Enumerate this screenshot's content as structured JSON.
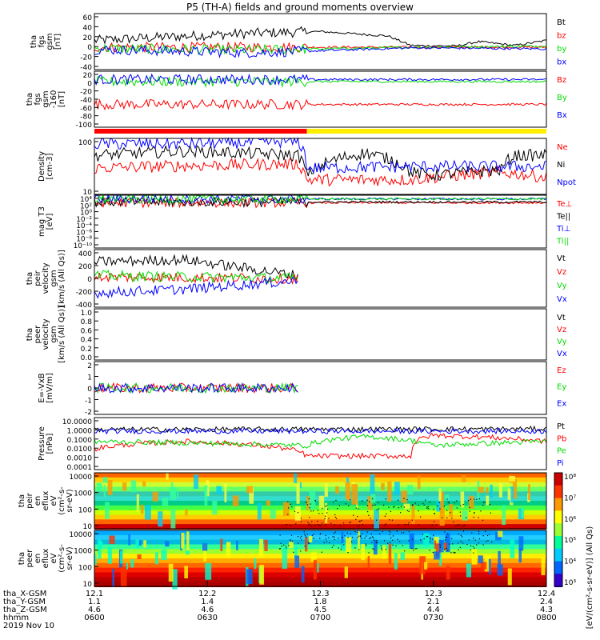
{
  "title": "P5 (TH-A) fields and ground moments overview",
  "colors": {
    "black": "#000000",
    "red": "#ff0000",
    "green": "#00dd00",
    "blue": "#0000ff",
    "yellow": "#ffee00"
  },
  "chart_data": [
    {
      "type": "line",
      "panel": "fgs",
      "ylabel_lines": [
        "tha",
        "fgs",
        "gsm",
        "[nT]"
      ],
      "yticks": [
        "60",
        "40",
        "20",
        "0",
        "-20",
        "-40"
      ],
      "ylim": [
        -40,
        60
      ],
      "series": [
        {
          "name": "Bt",
          "color": "#000000",
          "x": [
            0.0,
            0.15,
            0.35,
            0.5,
            0.65,
            0.7,
            0.71,
            0.8,
            0.85,
            0.93,
            1.0
          ],
          "values": [
            12,
            18,
            25,
            28,
            20,
            3,
            3,
            2,
            10,
            3,
            12
          ]
        },
        {
          "name": "bz",
          "color": "#ff0000",
          "x": [
            0.0,
            0.35,
            0.71,
            1.0
          ],
          "values": [
            0,
            0,
            0,
            0
          ]
        },
        {
          "name": "by",
          "color": "#00dd00",
          "x": [
            0.0,
            0.35,
            0.71,
            1.0
          ],
          "values": [
            -2,
            -5,
            0,
            2
          ]
        },
        {
          "name": "bx",
          "color": "#0000ff",
          "x": [
            0.0,
            0.35,
            0.71,
            1.0
          ],
          "values": [
            -4,
            -10,
            -1,
            -3
          ]
        }
      ]
    },
    {
      "type": "line",
      "panel": "fgs-gse",
      "ylabel_lines": [
        "tha",
        "fgs",
        "gsm",
        "-160",
        "[nT]"
      ],
      "yticks": [
        "20",
        "0",
        "-20",
        "-40",
        "-60",
        "-80",
        "-100"
      ],
      "ylim": [
        -110,
        25
      ],
      "series": [
        {
          "name": "Bz",
          "color": "#ff0000",
          "x": [
            0.0,
            1.0
          ],
          "values": [
            -55,
            -55
          ]
        },
        {
          "name": "By",
          "color": "#00dd00",
          "x": [
            0.0,
            1.0
          ],
          "values": [
            0,
            0
          ]
        },
        {
          "name": "Bx",
          "color": "#0000ff",
          "x": [
            0.0,
            1.0
          ],
          "values": [
            5,
            5
          ]
        }
      ]
    },
    {
      "type": "line",
      "panel": "density",
      "ylabel_lines": [
        "Density",
        "[cm-3]"
      ],
      "yticks": [
        "100",
        "10"
      ],
      "ylim": [
        1,
        200
      ],
      "log": true,
      "series": [
        {
          "name": "Ne",
          "color": "#ff0000",
          "x": [
            0.0,
            0.2,
            0.45,
            0.47,
            0.7,
            0.75,
            0.9,
            1.0
          ],
          "values": [
            12,
            15,
            18,
            4,
            4,
            5,
            8,
            5
          ]
        },
        {
          "name": "Ni",
          "color": "#000000",
          "x": [
            0.0,
            0.2,
            0.45,
            0.47,
            0.6,
            0.7,
            0.75,
            0.9,
            0.93,
            1.0
          ],
          "values": [
            40,
            60,
            40,
            5,
            50,
            8,
            6,
            10,
            40,
            40
          ]
        },
        {
          "name": "Npot",
          "color": "#0000ff",
          "x": [
            0.0,
            0.2,
            0.45,
            0.47,
            0.7,
            1.0
          ],
          "values": [
            120,
            120,
            150,
            12,
            14,
            14
          ]
        }
      ]
    },
    {
      "type": "line",
      "panel": "temperature",
      "ylabel_lines": [
        "mag T3",
        "[eV]"
      ],
      "yticks": [
        "10⁴",
        "10²",
        "10⁰",
        "10⁻²",
        "10⁻⁴",
        "10⁻⁶",
        "10⁻⁸",
        "10⁻¹⁰"
      ],
      "ylim": [
        -10,
        4
      ],
      "series": [
        {
          "name": "Te⊥",
          "color": "#ff0000",
          "x": [
            0.0,
            1.0
          ],
          "values": [
            2,
            2
          ]
        },
        {
          "name": "Te||",
          "color": "#000000",
          "x": [
            0.0,
            1.0
          ],
          "values": [
            2.2,
            2.2
          ]
        },
        {
          "name": "Ti⊥",
          "color": "#0000ff",
          "x": [
            0.0,
            1.0
          ],
          "values": [
            3,
            3
          ]
        },
        {
          "name": "Ti||",
          "color": "#00dd00",
          "x": [
            0.0,
            1.0
          ],
          "values": [
            3,
            3
          ]
        }
      ]
    },
    {
      "type": "line",
      "panel": "peir-velocity",
      "ylabel_lines": [
        "tha",
        "peir",
        "velocity",
        "gsm",
        "[km/s (All Qs)]"
      ],
      "yticks": [
        "400",
        "200",
        "0",
        "-200",
        "-400"
      ],
      "ylim": [
        -400,
        400
      ],
      "series": [
        {
          "name": "Vt",
          "color": "#000000",
          "x": [
            0.0,
            0.2,
            0.45
          ],
          "values": [
            230,
            260,
            40
          ]
        },
        {
          "name": "Vz",
          "color": "#ff0000",
          "x": [
            0.0,
            0.45
          ],
          "values": [
            20,
            0
          ]
        },
        {
          "name": "Vy",
          "color": "#00dd00",
          "x": [
            0.0,
            0.45
          ],
          "values": [
            40,
            0
          ]
        },
        {
          "name": "Vx",
          "color": "#0000ff",
          "x": [
            0.0,
            0.2,
            0.45
          ],
          "values": [
            -200,
            -150,
            -30
          ]
        }
      ]
    },
    {
      "type": "line",
      "panel": "peer-velocity",
      "ylabel_lines": [
        "tha",
        "peer",
        "velocity",
        "gsm",
        "[km/s (All Qs)]"
      ],
      "yticks": [
        "1.0",
        "0.8",
        "0.6",
        "0.4",
        "0.2",
        "0.0"
      ],
      "ylim": [
        0,
        1
      ],
      "series": [
        {
          "name": "Vt",
          "color": "#000000",
          "x": [],
          "values": []
        },
        {
          "name": "Vz",
          "color": "#ff0000",
          "x": [],
          "values": []
        },
        {
          "name": "Vy",
          "color": "#00dd00",
          "x": [],
          "values": []
        },
        {
          "name": "Vx",
          "color": "#0000ff",
          "x": [],
          "values": []
        }
      ]
    },
    {
      "type": "line",
      "panel": "efield",
      "ylabel_lines": [
        "E=-VxB",
        "[mV/m]"
      ],
      "yticks": [
        "2",
        "1",
        "0",
        "-1",
        "-2"
      ],
      "ylim": [
        -3,
        3
      ],
      "series": [
        {
          "name": "Ez",
          "color": "#ff0000",
          "x": [
            0.0,
            0.45
          ],
          "values": [
            0,
            0
          ]
        },
        {
          "name": "Ey",
          "color": "#00dd00",
          "x": [
            0.0,
            0.45
          ],
          "values": [
            0,
            0
          ]
        },
        {
          "name": "Ex",
          "color": "#0000ff",
          "x": [
            0.0,
            0.45
          ],
          "values": [
            0,
            0
          ]
        }
      ]
    },
    {
      "type": "line",
      "panel": "pressure",
      "ylabel_lines": [
        "Pressure",
        "[nPa]"
      ],
      "yticks": [
        "10.0000",
        "1.0000",
        "0.1000",
        "0.0100",
        "0.0010",
        "0.0001"
      ],
      "ylim": [
        0.0001,
        10
      ],
      "log": true,
      "series": [
        {
          "name": "Pt",
          "color": "#000000",
          "x": [
            0.0,
            1.0
          ],
          "values": [
            0.7,
            0.8
          ]
        },
        {
          "name": "Pb",
          "color": "#ff0000",
          "x": [
            0.0,
            0.2,
            0.47,
            0.7,
            0.75,
            1.0
          ],
          "values": [
            0.01,
            0.05,
            0.002,
            0.002,
            0.2,
            0.05
          ]
        },
        {
          "name": "Pe",
          "color": "#00dd00",
          "x": [
            0.0,
            0.47,
            0.6,
            0.75,
            1.0
          ],
          "values": [
            0.05,
            0.02,
            0.15,
            0.02,
            0.05
          ]
        },
        {
          "name": "Pi",
          "color": "#0000ff",
          "x": [
            0.0,
            1.0
          ],
          "values": [
            0.5,
            0.5
          ]
        }
      ]
    },
    {
      "type": "heatmap",
      "panel": "peir-spectrogram",
      "ylabel_lines": [
        "tha",
        "peir",
        "en",
        "eflux",
        "eV",
        "(cm²-s-",
        "sr-eV)"
      ],
      "yticks": [
        "10000",
        "1000",
        "100",
        "10"
      ]
    },
    {
      "type": "heatmap",
      "panel": "peer-spectrogram",
      "ylabel_lines": [
        "tha",
        "peer",
        "en",
        "eflux",
        "eV",
        "(cm²-s-",
        "sr-eV)"
      ],
      "yticks": [
        "10000",
        "1000",
        "100",
        "10"
      ]
    }
  ],
  "colorbar": {
    "label": "[eV/(cm²-s-sr-eV)] (All Qs)",
    "ticks": [
      "10⁸",
      "10⁷",
      "10⁶",
      "10⁵",
      "10⁴",
      "10³"
    ]
  },
  "bars": {
    "red_extent": [
      0.0,
      0.47
    ],
    "yellow_extent": [
      0.47,
      1.0
    ]
  },
  "ephemeris": {
    "rows": [
      {
        "label": "tha_X-GSM",
        "values": [
          "12.1",
          "12.2",
          "12.3",
          "12.3",
          "12.4"
        ]
      },
      {
        "label": "tha_Y-GSM",
        "values": [
          "1.1",
          "1.4",
          "1.8",
          "2.1",
          "2.4"
        ]
      },
      {
        "label": "tha_Z-GSM",
        "values": [
          "4.6",
          "4.6",
          "4.5",
          "4.4",
          "4.3"
        ]
      },
      {
        "label": "hhmm",
        "values": [
          "0600",
          "0630",
          "0700",
          "0730",
          "0800"
        ]
      }
    ],
    "date": "2019 Nov 10"
  }
}
